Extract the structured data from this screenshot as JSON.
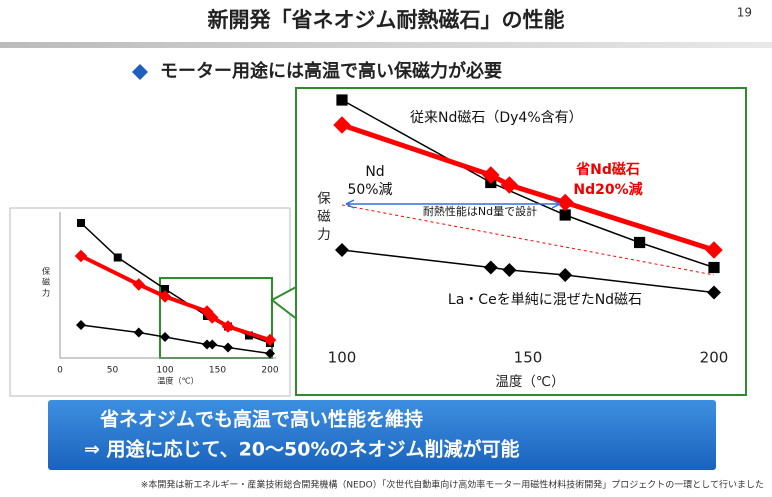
{
  "slide": {
    "title": "新開発「省ネオジム耐熱磁石」の性能",
    "page": 19,
    "subtitle": "モーター用途には高温で高い保磁力が必要",
    "banner": [
      "省ネオジムでも高温で高い性能を維持",
      "⇒ 用途に応じて、20～50%のネオジム削減が可能"
    ],
    "footnote": "※本開発は新エネルギー・産業技術総合開発機構（NEDO）「次世代自動車向け高効率モーター用磁性材料技術開発」プロジェクトの一環として行いました"
  },
  "chart_data": [
    {
      "type": "line",
      "xlabel": "温度（℃）",
      "ylabel": "保磁力",
      "xlim": [
        0,
        200
      ],
      "xticks": [
        0,
        50,
        100,
        150,
        200
      ],
      "ylim": [
        0,
        10
      ],
      "series": [
        {
          "color": "#000000",
          "marker": "square",
          "x": [
            20,
            55,
            100,
            140,
            160,
            180,
            200
          ],
          "values": [
            9.0,
            6.7,
            4.6,
            2.8,
            2.1,
            1.5,
            1.0
          ]
        },
        {
          "color": "#ff0000",
          "marker": "diamond",
          "x": [
            20,
            75,
            100,
            140,
            145,
            160,
            200
          ],
          "values": [
            6.8,
            4.9,
            4.1,
            3.1,
            2.7,
            2.1,
            1.2
          ]
        },
        {
          "color": "#000000",
          "marker": "diamond",
          "x": [
            20,
            75,
            100,
            140,
            145,
            160,
            200
          ],
          "values": [
            2.2,
            1.7,
            1.4,
            0.9,
            0.9,
            0.7,
            0.3
          ]
        }
      ]
    },
    {
      "type": "line",
      "xlabel": "温度（℃）",
      "ylabel": "保磁力",
      "xlim": [
        100,
        200
      ],
      "xticks": [
        100,
        150,
        200
      ],
      "ylim": [
        0,
        10
      ],
      "series": [
        {
          "color": "#000000",
          "marker": "square",
          "x": [
            100,
            140,
            160,
            180,
            200
          ],
          "values": [
            9.6,
            6.3,
            5.0,
            3.9,
            2.9
          ]
        },
        {
          "color": "#ff0000",
          "marker": "diamond",
          "x": [
            100,
            140,
            145,
            160,
            200
          ],
          "values": [
            8.6,
            6.6,
            6.2,
            5.5,
            3.6
          ]
        },
        {
          "color": "#000000",
          "marker": "diamond",
          "x": [
            100,
            140,
            145,
            160,
            200
          ],
          "values": [
            3.6,
            2.9,
            2.8,
            2.6,
            1.9
          ]
        },
        {
          "color": "#ff0000",
          "marker": "none",
          "dashed": true,
          "x": [
            100,
            200
          ],
          "values": [
            5.4,
            2.6
          ]
        }
      ],
      "annotations": [
        "従来Nd磁石（Dy4%含有）",
        "省Nd磁石",
        "Nd20%減",
        "Nd",
        "50%減",
        "耐熱性能はNd量で設計",
        "La・Ceを単純に混ぜたNd磁石"
      ]
    }
  ]
}
